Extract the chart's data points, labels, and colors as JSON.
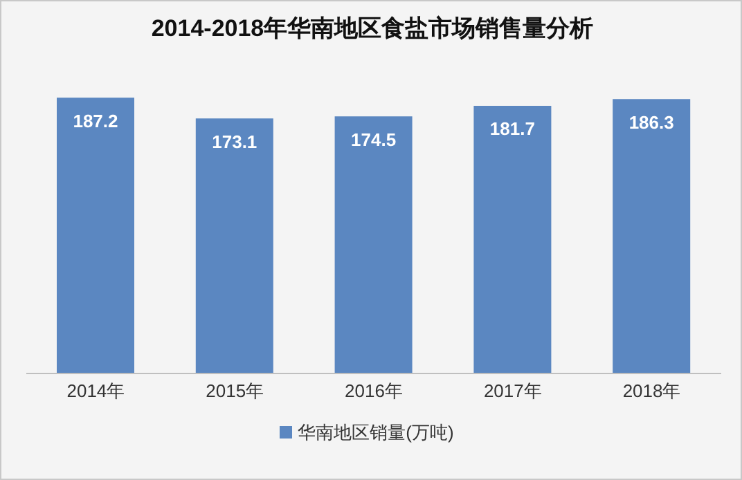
{
  "chart_data": {
    "type": "bar",
    "title": "2014-2018年华南地区食盐市场销售量分析",
    "categories": [
      "2014年",
      "2015年",
      "2016年",
      "2017年",
      "2018年"
    ],
    "series": [
      {
        "name": "华南地区销量(万吨)",
        "color": "#5b87c1",
        "values": [
          187.2,
          173.1,
          174.5,
          181.7,
          186.3
        ]
      }
    ],
    "tick_labels": "x",
    "data_labels": true,
    "legend": "bottom",
    "grid": false
  }
}
